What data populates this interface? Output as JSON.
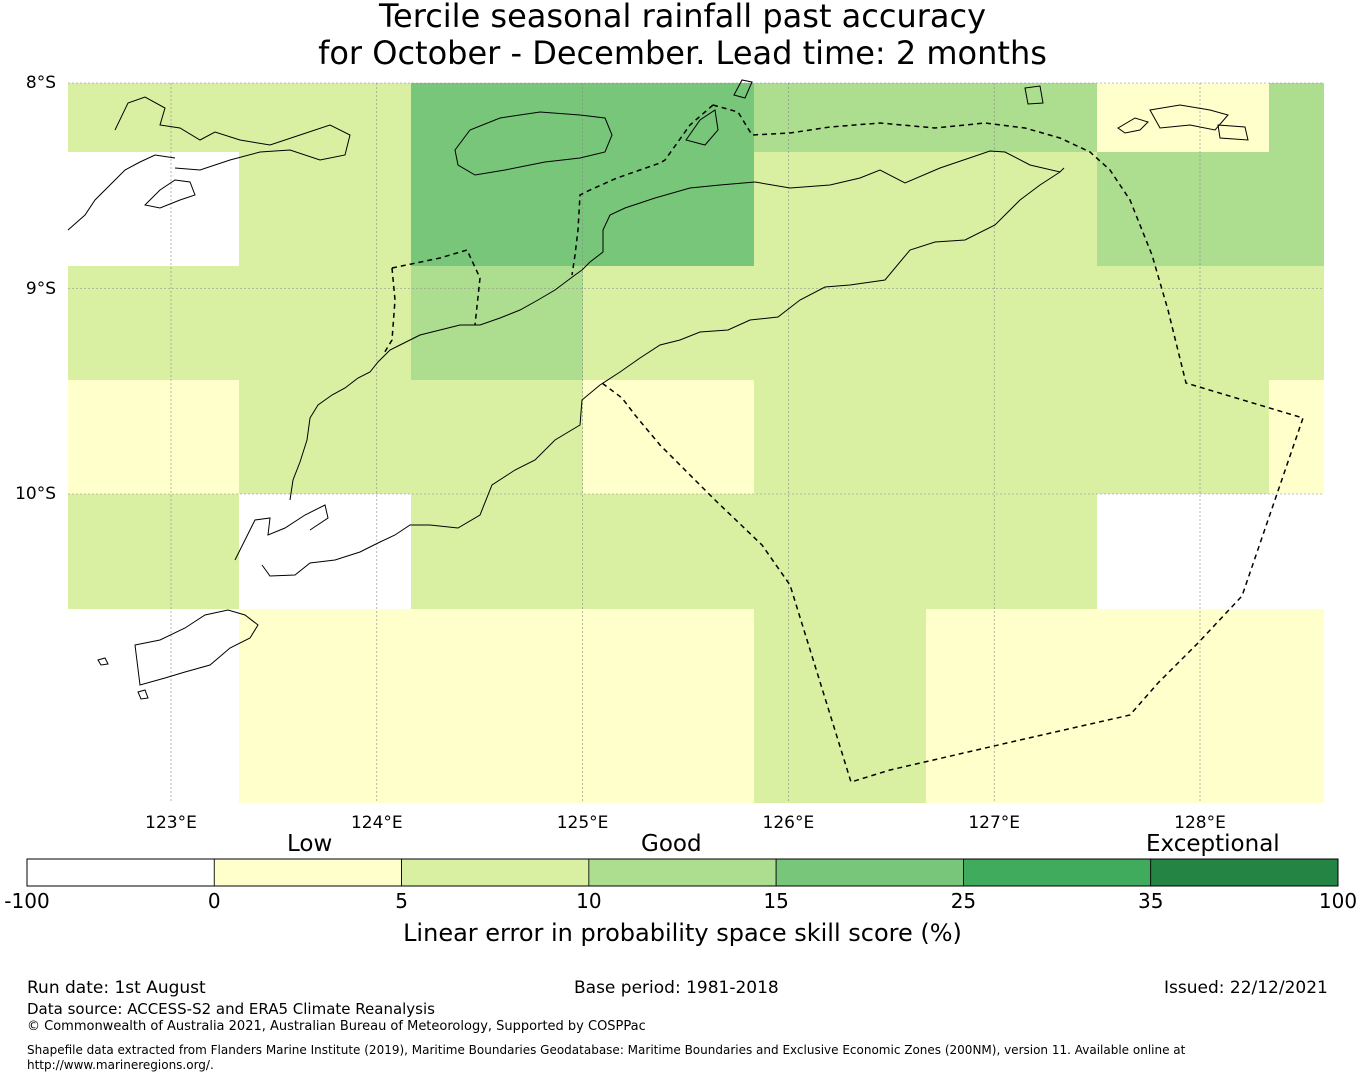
{
  "title": {
    "line1": "Tercile seasonal rainfall past accuracy",
    "line2": "for October - December. Lead time: 2 months"
  },
  "map": {
    "lat_ticks": [
      {
        "value": -8,
        "label": "8°S"
      },
      {
        "value": -9,
        "label": "9°S"
      },
      {
        "value": -10,
        "label": "10°S"
      }
    ],
    "lon_ticks": [
      {
        "value": 123,
        "label": "123°E"
      },
      {
        "value": 124,
        "label": "124°E"
      },
      {
        "value": 125,
        "label": "125°E"
      },
      {
        "value": 126,
        "label": "126°E"
      },
      {
        "value": 127,
        "label": "127°E"
      },
      {
        "value": 128,
        "label": "128°E"
      }
    ],
    "grid": true,
    "colors": {
      "below0": "#ffffff",
      "0-5": "#ffffcc",
      "5-10": "#d9f0a3",
      "10-15": "#addd8e",
      "15-25": "#78c679",
      "25-35": "#41ab5d",
      "35-100": "#238443"
    },
    "cell_classes": [
      [
        "5-10",
        "5-10",
        "15-25",
        "15-25",
        "10-15",
        "10-15",
        "0-5",
        "10-15"
      ],
      [
        "below0",
        "5-10",
        "15-25",
        "15-25",
        "5-10",
        "5-10",
        "10-15",
        "10-15"
      ],
      [
        "5-10",
        "5-10",
        "10-15",
        "5-10",
        "5-10",
        "5-10",
        "5-10",
        "5-10"
      ],
      [
        "0-5",
        "5-10",
        "5-10",
        "0-5",
        "5-10",
        "5-10",
        "5-10",
        "0-5"
      ],
      [
        "5-10",
        "below0",
        "5-10",
        "5-10",
        "5-10",
        "5-10",
        "below0",
        "below0"
      ],
      [
        "below0",
        "0-5",
        "0-5",
        "0-5",
        "5-10",
        "0-5",
        "0-5",
        "0-5"
      ]
    ]
  },
  "colorbar": {
    "category_labels": [
      "Low",
      "Good",
      "Exceptional"
    ],
    "ticks": [
      "-100",
      "0",
      "5",
      "10",
      "15",
      "25",
      "35",
      "100"
    ],
    "colors": [
      "#ffffff",
      "#ffffcc",
      "#d9f0a3",
      "#addd8e",
      "#78c679",
      "#41ab5d",
      "#238443"
    ],
    "title": "Linear error in probability space skill score (%)"
  },
  "footer": {
    "run_date": "Run date: 1st August",
    "base_period": "Base period: 1981-2018",
    "issued": "Issued: 22/12/2021",
    "data_source": "Data source: ACCESS-S2 and ERA5 Climate Reanalysis",
    "copyright": "© Commonwealth of Australia 2021, Australian Bureau of Meteorology, Supported by COSPPac",
    "shapefile": "Shapefile data extracted from Flanders Marine Institute (2019), Maritime Boundaries Geodatabase: Maritime Boundaries and Exclusive Economic Zones (200NM), version 11. Available online at http://www.marineregions.org/."
  }
}
